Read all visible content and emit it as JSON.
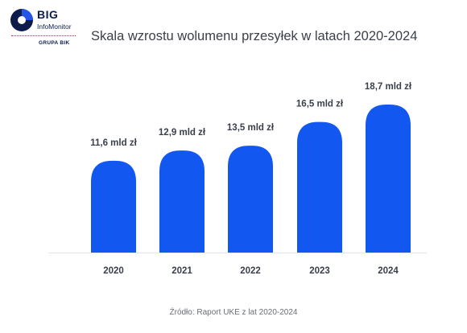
{
  "logo": {
    "name": "BIG",
    "subname": "InfoMonitor",
    "group": "GRUPA BIK",
    "colors": {
      "navy": "#0d1b4c",
      "blue": "#2356e8",
      "red": "#d2262f"
    }
  },
  "title": "Skala wzrostu wolumenu przesyłek w latach 2020-2024",
  "source": "Źródło: Raport UKE z lat 2020-2024",
  "chart_data": {
    "type": "bar",
    "title": "Skala wzrostu wolumenu przesyłek w latach 2020-2024",
    "xlabel": "",
    "ylabel": "",
    "unit": "mld zł",
    "categories": [
      "2020",
      "2021",
      "2022",
      "2023",
      "2024"
    ],
    "values": [
      11.6,
      12.9,
      13.5,
      16.5,
      18.7
    ],
    "value_labels": [
      "11,6 mld zł",
      "12,9 mld zł",
      "13,5 mld zł",
      "16,5 mld zł",
      "18,7 mld zł"
    ],
    "ylim": [
      0,
      18.7
    ],
    "grid": false,
    "legend": "none",
    "colors": {
      "bar": "#1257f0",
      "label": "#3a3f4b",
      "baseline": "#e2e4ea"
    }
  }
}
